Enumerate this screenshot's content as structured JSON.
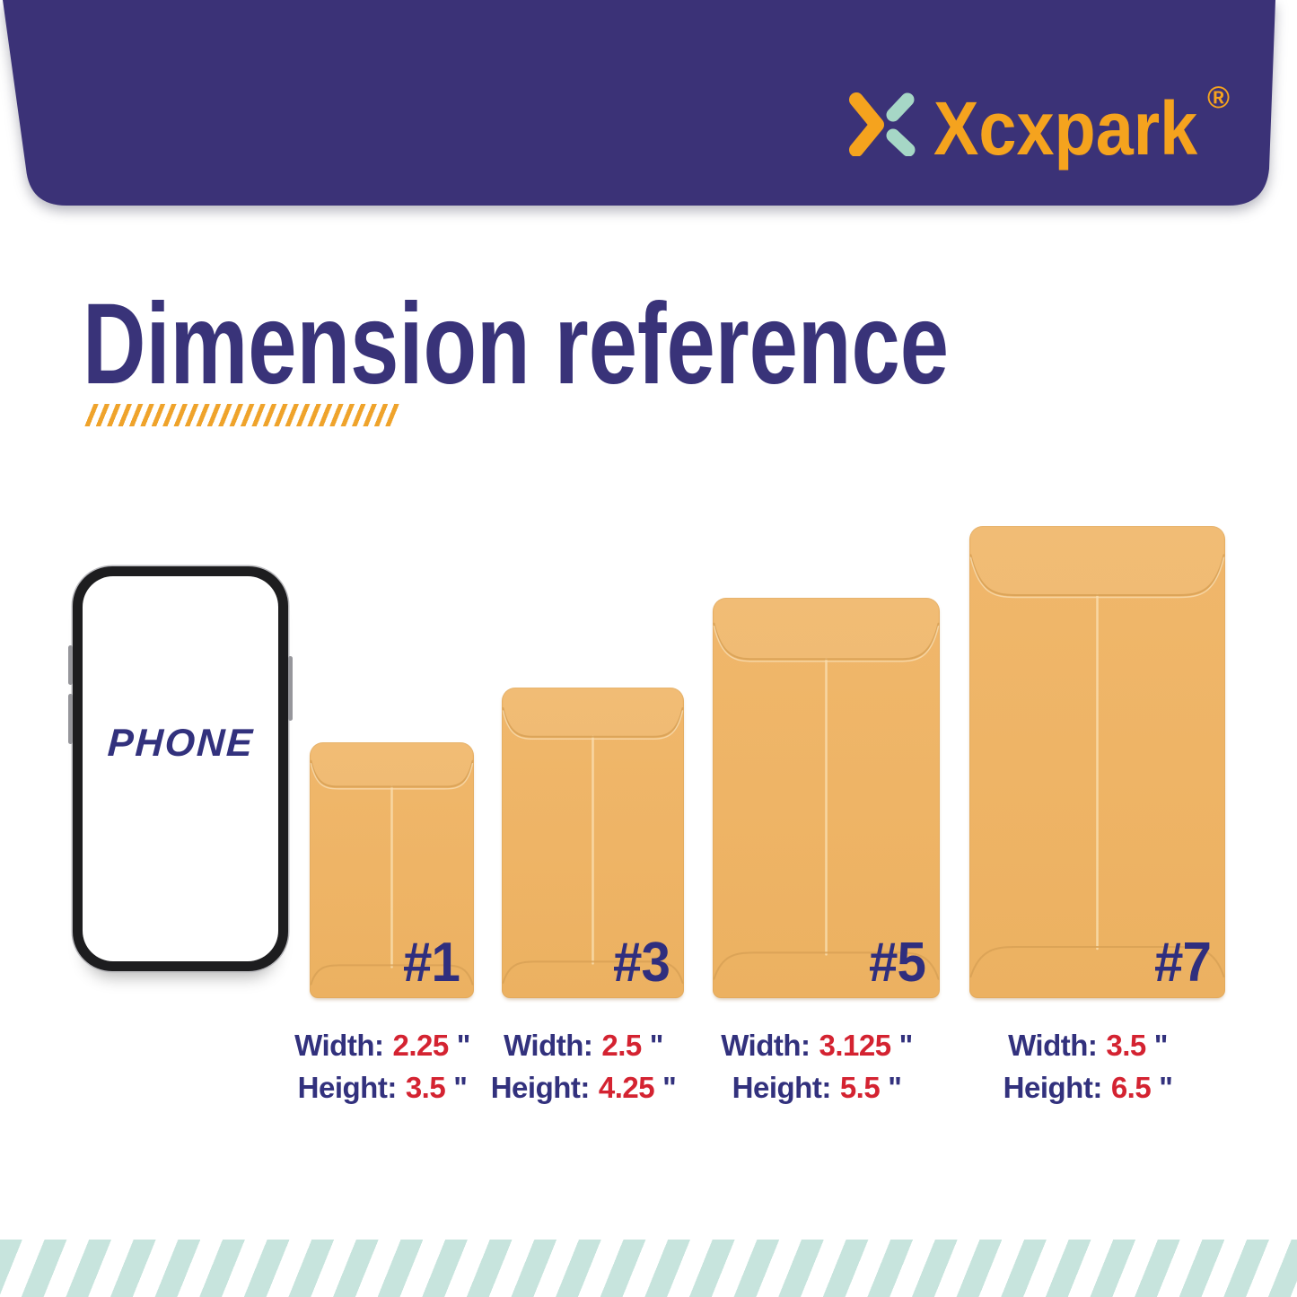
{
  "header": {
    "brand_name": "Xcxpark",
    "registered_mark": "®",
    "logo_icon": "brand-x-icon"
  },
  "title": "Dimension reference",
  "phone": {
    "label": "PHONE"
  },
  "envelopes": [
    {
      "label": "#1",
      "width_label": "Width:",
      "width_value": "2.25",
      "height_label": "Height:",
      "height_value": "3.5",
      "unit": "\""
    },
    {
      "label": "#3",
      "width_label": "Width:",
      "width_value": "2.5",
      "height_label": "Height:",
      "height_value": "4.25",
      "unit": "\""
    },
    {
      "label": "#5",
      "width_label": "Width:",
      "width_value": "3.125",
      "height_label": "Height:",
      "height_value": "5.5",
      "unit": "\""
    },
    {
      "label": "#7",
      "width_label": "Width:",
      "width_value": "3.5",
      "height_label": "Height:",
      "height_value": "6.5",
      "unit": "\""
    }
  ],
  "colors": {
    "banner_navy": "#3b3277",
    "logo_orange": "#f5a31e",
    "icon_mint": "#a6d7c6",
    "title_navy": "#393379",
    "navy_text": "#32317d",
    "red": "#d42331",
    "envelope_tan": "#eeb466",
    "crease": "#d8a156",
    "seam": "#f8d9a5",
    "stripe_mint": "#c7e4dd",
    "hatch_orange": "#efa32b",
    "label_navy": "#2f2e7e",
    "phone_frame": "#1d1d1f"
  }
}
